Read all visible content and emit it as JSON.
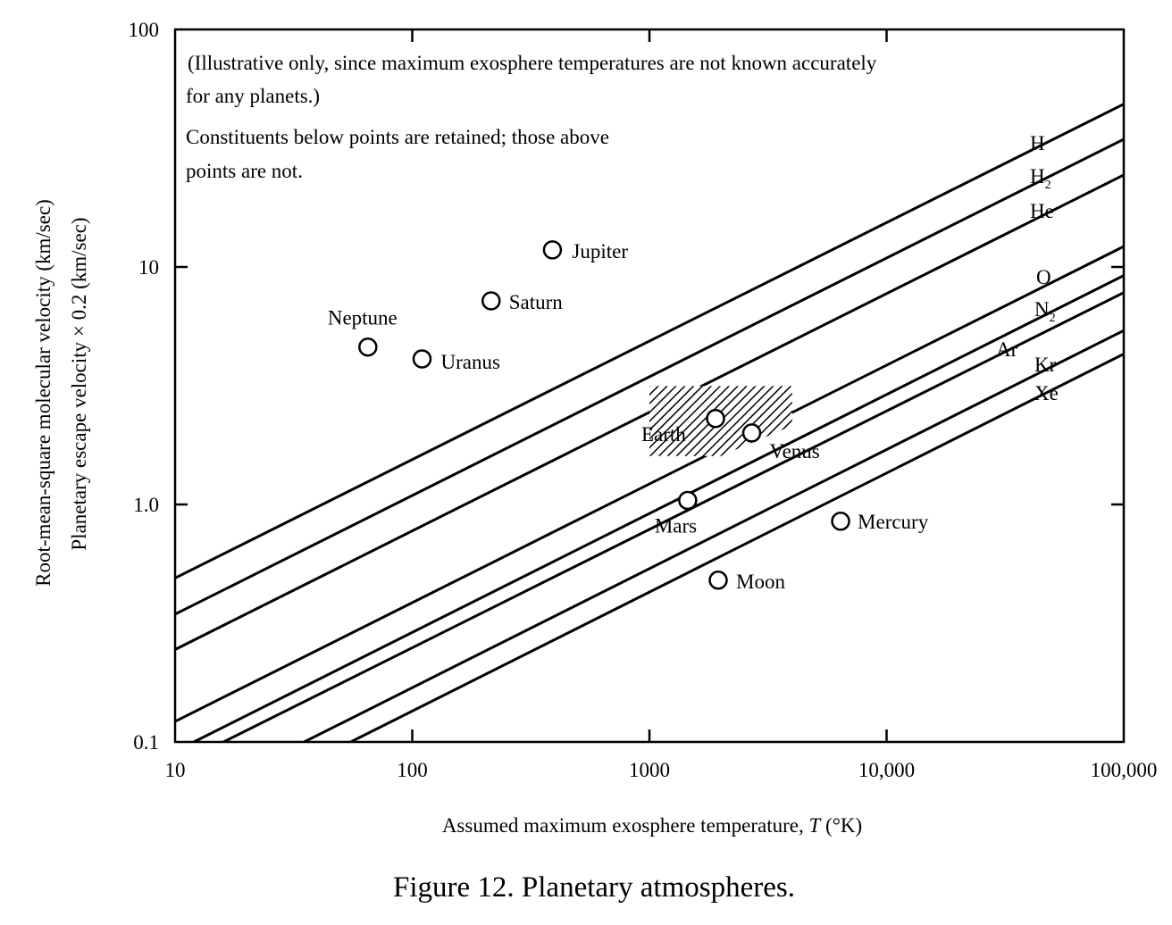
{
  "chart_data": {
    "type": "line",
    "title": "",
    "caption": "Figure 12. Planetary atmospheres.",
    "xlabel": "Assumed maximum exosphere temperature, T (°K)",
    "xlabel_parts": {
      "before": "Assumed maximum exosphere temperature, ",
      "var": "T",
      "after": " (°K)"
    },
    "ylabel_lines": [
      "Root-mean-square molecular velocity (km/sec)",
      "Planetary escape velocity × 0.2 (km/sec)"
    ],
    "xscale": "log",
    "yscale": "log",
    "xlim": [
      10,
      100000
    ],
    "ylim": [
      0.1,
      100
    ],
    "x_ticks": [
      10,
      100,
      1000,
      10000,
      100000
    ],
    "x_tick_labels": [
      "10",
      "100",
      "1000",
      "10,000",
      "100,000"
    ],
    "y_ticks": [
      0.1,
      1,
      10,
      100
    ],
    "y_tick_labels": [
      "0.1",
      "1.0",
      "10",
      "100"
    ],
    "grid": false,
    "notes": [
      [
        "(Illustrative only, since maximum exosphere temperatures are not known accurately",
        "for any planets.)"
      ],
      [
        "Constituents below points are retained; those above",
        "points are not."
      ]
    ],
    "series": [
      {
        "name": "H",
        "base": "H",
        "sub": "",
        "x": [
          10,
          100000
        ],
        "y": [
          0.49,
          48.5
        ]
      },
      {
        "name": "H₂",
        "base": "H",
        "sub": "2",
        "x": [
          10,
          100000
        ],
        "y": [
          0.345,
          34.5
        ]
      },
      {
        "name": "He",
        "base": "He",
        "sub": "",
        "x": [
          10,
          100000
        ],
        "y": [
          0.245,
          24.4
        ]
      },
      {
        "name": "O",
        "base": "O",
        "sub": "",
        "x": [
          10,
          100000
        ],
        "y": [
          0.122,
          12.2
        ]
      },
      {
        "name": "N₂",
        "base": "N",
        "sub": "2",
        "x": [
          12,
          100000
        ],
        "y": [
          0.1,
          9.2
        ]
      },
      {
        "name": "Ar",
        "base": "Ar",
        "sub": "",
        "x": [
          16,
          100000
        ],
        "y": [
          0.1,
          7.8
        ]
      },
      {
        "name": "Kr",
        "base": "Kr",
        "sub": "",
        "x": [
          35,
          100000
        ],
        "y": [
          0.1,
          5.4
        ]
      },
      {
        "name": "Xe",
        "base": "Xe",
        "sub": "",
        "x": [
          55,
          100000
        ],
        "y": [
          0.1,
          4.3
        ]
      }
    ],
    "points": [
      {
        "name": "Jupiter",
        "x": 390,
        "y": 11.8
      },
      {
        "name": "Saturn",
        "x": 215,
        "y": 7.2
      },
      {
        "name": "Neptune",
        "x": 65,
        "y": 4.6
      },
      {
        "name": "Uranus",
        "x": 110,
        "y": 4.1
      },
      {
        "name": "Earth",
        "x": 1900,
        "y": 2.3
      },
      {
        "name": "Venus",
        "x": 2700,
        "y": 2.0
      },
      {
        "name": "Mars",
        "x": 1450,
        "y": 1.04
      },
      {
        "name": "Mercury",
        "x": 6400,
        "y": 0.85
      },
      {
        "name": "Moon",
        "x": 1950,
        "y": 0.48
      }
    ],
    "hatched_region": {
      "polygon": [
        [
          1000,
          3.15
        ],
        [
          4000,
          3.15
        ],
        [
          4000,
          2.15
        ],
        [
          2000,
          1.6
        ],
        [
          1000,
          1.6
        ]
      ]
    },
    "colors": {
      "ink": "#000000",
      "background": "#ffffff"
    }
  }
}
